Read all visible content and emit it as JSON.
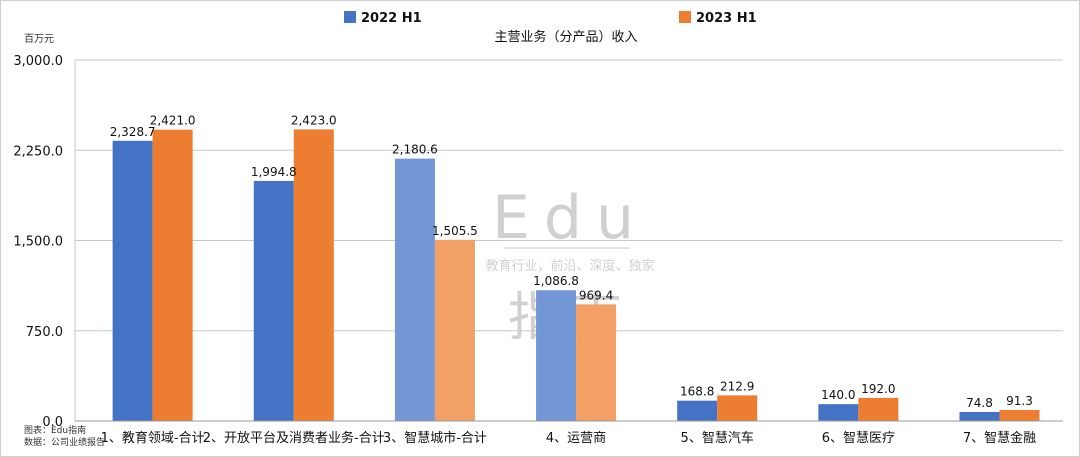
{
  "chart_data": {
    "type": "bar",
    "title": "主营业务（分产品）收入",
    "unit_label": "百万元",
    "ylim": [
      0,
      3000
    ],
    "yticks": [
      "0.0",
      "750.0",
      "1,500.0",
      "2,250.0",
      "3,000.0"
    ],
    "ytick_values": [
      0,
      750,
      1500,
      2250,
      3000
    ],
    "grid": true,
    "legend_position": "top",
    "categories": [
      "1、教育领域-合计",
      "2、开放平台及消费者业务-合计",
      "3、智慧城市-合计",
      "4、运营商",
      "5、智慧汽车",
      "6、智慧医疗",
      "7、智慧金融"
    ],
    "series": [
      {
        "name": "2022 H1",
        "color": "#4472C4",
        "light_color": "#7396D6",
        "values": [
          2328.7,
          1994.8,
          2180.6,
          1086.8,
          168.8,
          140.0,
          74.8
        ],
        "labels": [
          "2,328.7",
          "1,994.8",
          "2,180.6",
          "1,086.8",
          "168.8",
          "140.0",
          "74.8"
        ]
      },
      {
        "name": "2023 H1",
        "color": "#ED7D31",
        "light_color": "#F2A066",
        "values": [
          2421.0,
          2423.0,
          1505.5,
          969.4,
          212.9,
          192.0,
          91.3
        ],
        "labels": [
          "2,421.0",
          "2,423.0",
          "1,505.5",
          "969.4",
          "212.9",
          "192.0",
          "91.3"
        ]
      }
    ],
    "light_categories": [
      2,
      3
    ]
  },
  "source_note": {
    "line1": "图表：Edu指南",
    "line2": "数据：公司业绩报告"
  },
  "watermark": {
    "brand": "Edu",
    "tagline": "教育行业，前沿、深度、独家",
    "brand_cn": "指南"
  }
}
